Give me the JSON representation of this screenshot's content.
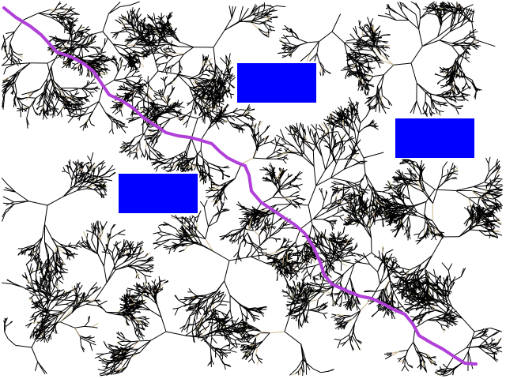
{
  "scene": {
    "type": "rrt-path-planning-visualization",
    "background_color": "#ffffff",
    "tree_color": "#000000",
    "tree_highlight_color": "#c8b48a",
    "path_color": "#b040d8",
    "obstacle_color": "#0000ff",
    "obstacle_count": 3,
    "tree_count": 12,
    "has_planned_path": true
  }
}
